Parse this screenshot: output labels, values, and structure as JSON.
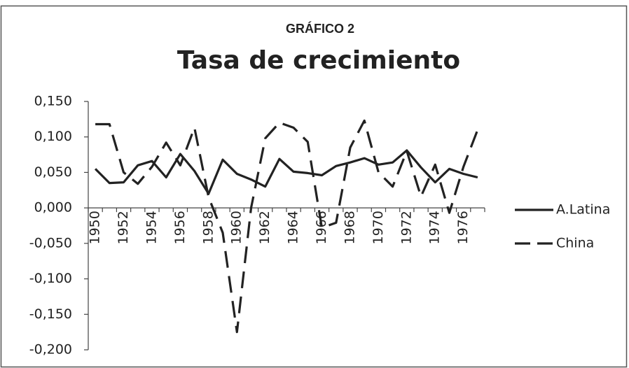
{
  "chart_data": {
    "type": "line",
    "supertitle": "GRÁFICO 2",
    "title": "Tasa de crecimiento",
    "categories": [
      "1950",
      null,
      "1952",
      null,
      "1954",
      null,
      "1956",
      null,
      "1958",
      null,
      "1960",
      null,
      "1962",
      null,
      "1964",
      null,
      "1966",
      null,
      "1968",
      null,
      "1970",
      null,
      "1972",
      null,
      "1974",
      null,
      "1976",
      null
    ],
    "series": [
      {
        "name": "A.Latina",
        "color": "#222222",
        "dash": false,
        "values": [
          0.055,
          0.035,
          0.036,
          0.06,
          0.066,
          0.043,
          0.076,
          0.052,
          0.02,
          0.068,
          0.048,
          0.04,
          0.03,
          0.069,
          0.051,
          0.049,
          0.046,
          0.059,
          0.064,
          0.07,
          0.061,
          0.064,
          0.081,
          0.057,
          0.036,
          0.055,
          0.048,
          0.043
        ]
      },
      {
        "name": "China",
        "color": "#222222",
        "dash": true,
        "values": [
          0.118,
          0.118,
          0.05,
          0.034,
          0.058,
          0.092,
          0.06,
          0.113,
          0.015,
          -0.035,
          -0.175,
          0.0,
          0.098,
          0.12,
          0.113,
          0.093,
          -0.028,
          -0.021,
          0.085,
          0.123,
          0.05,
          0.03,
          0.08,
          0.016,
          0.061,
          -0.007,
          0.058,
          0.11
        ]
      }
    ],
    "ylim": [
      -0.2,
      0.15
    ],
    "yticks": [
      {
        "value": 0.15,
        "label": "0,150"
      },
      {
        "value": 0.1,
        "label": "0,100"
      },
      {
        "value": 0.05,
        "label": "0,050"
      },
      {
        "value": 0,
        "label": "0,000"
      },
      {
        "value": -0.05,
        "label": "-0,050"
      },
      {
        "value": -0.1,
        "label": "-0,100"
      },
      {
        "value": -0.15,
        "label": "-0,150"
      },
      {
        "value": -0.2,
        "label": "-0,200"
      }
    ],
    "grid": false,
    "legend": "right"
  }
}
